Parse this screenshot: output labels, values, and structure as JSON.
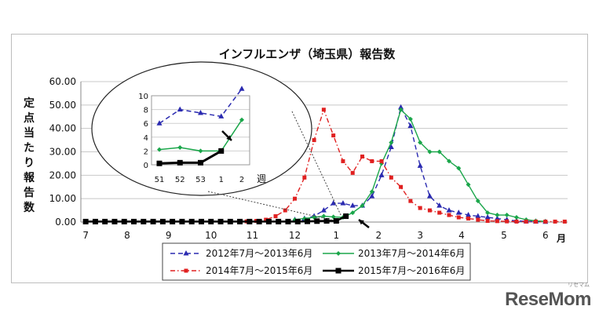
{
  "chart_data": {
    "type": "line",
    "title": "インフルエンザ（埼玉県）報告数",
    "ylabel": "定点当たり報告数",
    "xlabel": "月",
    "ylim": [
      0,
      60
    ],
    "ytick_labels": [
      "0.00",
      "10.00",
      "20.00",
      "30.00",
      "40.00",
      "50.00",
      "60.00"
    ],
    "month_labels": [
      "7",
      "8",
      "9",
      "10",
      "11",
      "12",
      "1",
      "2",
      "3",
      "4",
      "5",
      "6"
    ],
    "month_positions": [
      0,
      4.3,
      8.6,
      13,
      17.3,
      21.7,
      26,
      30.4,
      34.7,
      39,
      43.4,
      47.7
    ],
    "grid": true,
    "legend_position": "bottom",
    "series": [
      {
        "name": "2012年7月～2013年6月",
        "color": "#2a2ab0",
        "dash": "6,4",
        "marker": "triangle",
        "x": [
          21.7,
          22.7,
          23.7,
          24.7,
          25.7,
          26.7,
          27.7,
          28.7,
          29.7,
          30.7,
          31.7,
          32.7,
          33.7,
          34.7,
          35.7,
          36.7,
          37.7,
          38.7,
          39.7,
          40.7,
          41.7,
          42.7,
          43.7,
          44.7,
          45.7,
          46.7,
          47.7
        ],
        "values": [
          1.0,
          1.5,
          2.5,
          5,
          8,
          8,
          7,
          7,
          11,
          20,
          32,
          49,
          41,
          24,
          11,
          7,
          5,
          4,
          3,
          2.5,
          2,
          1.5,
          1,
          0.5,
          0.3,
          0.2,
          0.1
        ]
      },
      {
        "name": "2013年7月～2014年6月",
        "color": "#1aa64a",
        "dash": "",
        "marker": "diamond",
        "x": [
          21.7,
          22.7,
          23.7,
          24.7,
          25.7,
          26.7,
          27.7,
          28.7,
          29.7,
          30.7,
          31.7,
          32.7,
          33.7,
          34.7,
          35.7,
          36.7,
          37.7,
          38.7,
          39.7,
          40.7,
          41.7,
          42.7,
          43.7,
          44.7,
          45.7,
          46.7,
          47.7
        ],
        "values": [
          1.0,
          1.5,
          2.0,
          2.5,
          2.2,
          2.0,
          4,
          7,
          13,
          25,
          34,
          48,
          44,
          34,
          30,
          30,
          26,
          23,
          16,
          9,
          4,
          3,
          3,
          2,
          1,
          0.5,
          0.3
        ]
      },
      {
        "name": "2014年7月～2015年6月",
        "color": "#e02020",
        "dash": "6,3,1.5,3",
        "marker": "square",
        "x": [
          16.7,
          17.7,
          18.7,
          19.7,
          20.7,
          21.7,
          22.7,
          23.7,
          24.7,
          25.7,
          26.7,
          27.7,
          28.7,
          29.7,
          30.7,
          31.7,
          32.7,
          33.7,
          34.7,
          35.7,
          36.7,
          37.7,
          38.7,
          39.7,
          40.7,
          41.7,
          42.7,
          43.7,
          44.7,
          45.7,
          46.7,
          47.7,
          48.7,
          49.7
        ],
        "values": [
          0.3,
          0.5,
          1,
          2.5,
          5,
          10,
          19,
          35,
          48,
          37,
          26,
          21,
          28,
          26,
          26,
          19,
          15,
          9,
          6,
          5,
          4,
          3,
          2,
          1.5,
          1,
          0.5,
          0.4,
          0.3,
          0.2,
          0.2,
          0.2,
          0.2,
          0.2,
          0.2
        ]
      },
      {
        "name": "2015年7月～2016年6月",
        "color": "#000000",
        "dash": "",
        "marker": "bigsquare",
        "x": [
          0,
          1,
          2,
          3,
          4,
          5,
          6,
          7,
          8,
          9,
          10,
          11,
          12,
          13,
          14,
          15,
          16,
          17,
          18,
          19,
          20,
          21,
          22,
          23,
          24,
          25,
          26,
          27
        ],
        "values": [
          0.2,
          0.2,
          0.2,
          0.2,
          0.2,
          0.2,
          0.2,
          0.2,
          0.2,
          0.2,
          0.2,
          0.2,
          0.2,
          0.2,
          0.2,
          0.2,
          0.2,
          0.2,
          0.2,
          0.2,
          0.2,
          0.2,
          0.2,
          0.3,
          0.4,
          0.5,
          0.5,
          2.5
        ]
      }
    ],
    "inset": {
      "xtick_labels": [
        "51",
        "52",
        "53",
        "1",
        "2"
      ],
      "ytick_labels": [
        "0",
        "2",
        "4",
        "6",
        "8",
        "10"
      ],
      "xlabel": "週",
      "ylim": [
        0,
        10
      ],
      "series": [
        {
          "color": "#2a2ab0",
          "dash": "6,4",
          "values": [
            6,
            8,
            7.5,
            7,
            11
          ]
        },
        {
          "color": "#1aa64a",
          "dash": "",
          "values": [
            2.2,
            2.5,
            2.0,
            2.0,
            6.5
          ]
        },
        {
          "color": "#000000",
          "dash": "",
          "values": [
            0.2,
            0.3,
            0.3,
            2.0,
            null
          ]
        }
      ]
    }
  },
  "watermark": {
    "text": "ReseMom",
    "sub": "リセマム"
  }
}
